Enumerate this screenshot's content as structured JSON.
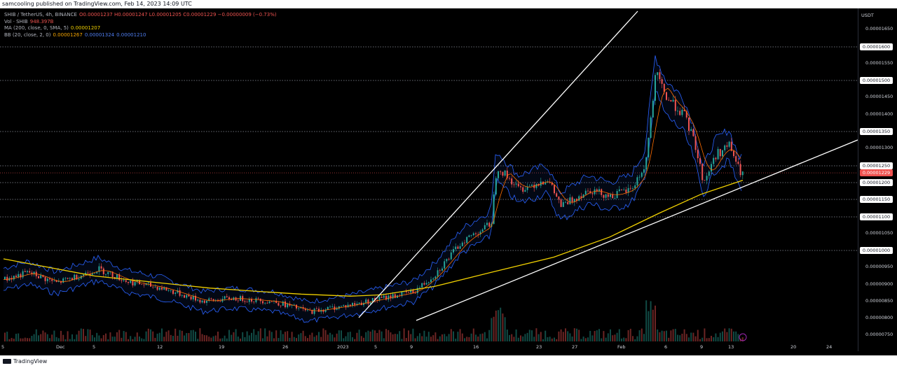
{
  "header": {
    "publish_text": "samcooling published on TradingView.com, Feb 14, 2023 14:09 UTC"
  },
  "legend": {
    "symbol": "SHIB / TetherUS, 4h, BINANCE",
    "ohlc": "O0.00001237 H0.00001247 L0.00001205 C0.00001229 −0.00000009 (−0.73%)",
    "vol_label": "Vol · SHIB",
    "vol_value": "948.397B",
    "ma_label": "MA (200, close, 0, SMA, 5)",
    "ma_value": "0.00001207",
    "bb_label": "BB (20, close, 2, 0)",
    "bb_values": [
      "0.00001267",
      "0.00001324",
      "0.00001210"
    ]
  },
  "price_axis": {
    "currency": "USDT",
    "labels": [
      "0.00001650",
      "0.00001600",
      "0.00001550",
      "0.00001500",
      "0.00001450",
      "0.00001400",
      "0.00001350",
      "0.00001300",
      "0.00001250",
      "0.00001200",
      "0.00001150",
      "0.00001100",
      "0.00001050",
      "0.00001000",
      "0.00000950",
      "0.00000900",
      "0.00000850",
      "0.00000800",
      "0.00000750"
    ],
    "highlighted": [
      "0.00001600",
      "0.00001500",
      "0.00001350",
      "0.00001250",
      "0.00001200",
      "0.00001150",
      "0.00001100",
      "0.00001000"
    ],
    "current_price": "0.00001229"
  },
  "time_axis": {
    "labels": [
      "5",
      "Dec",
      "5",
      "12",
      "19",
      "26",
      "2023",
      "5",
      "9",
      "16",
      "23",
      "27",
      "Feb",
      "6",
      "9",
      "13",
      "20",
      "24"
    ]
  },
  "footer": {
    "brand": "TradingView"
  },
  "colors": {
    "up": "#26a69a",
    "down": "#ef5350",
    "ma": "#f0d000",
    "bb_band": "#2962ff",
    "bb_basis": "#ff6d00",
    "trendline": "#ffffff"
  },
  "chart_data": {
    "type": "line",
    "title": "SHIB / TetherUS, 4h, BINANCE",
    "x": [
      "Dec",
      "Dec 5",
      "Dec 12",
      "Dec 19",
      "Dec 26",
      "2023",
      "Jan 5",
      "Jan 9",
      "Jan 16",
      "Jan 23",
      "Jan 27",
      "Feb",
      "Feb 6",
      "Feb 9",
      "Feb 13"
    ],
    "series": [
      {
        "name": "SHIB / TetherUS",
        "values": [
          9.15e-06,
          9.35e-06,
          8.95e-06,
          8.6e-06,
          8.45e-06,
          8.25e-06,
          8.5e-06,
          8.7e-06,
          1.15e-05,
          1.19e-05,
          1.195e-05,
          1.22e-05,
          1.45e-05,
          1.26e-05,
          1.229e-05
        ]
      },
      {
        "name": "MA (200, close, 0, SMA, 5)",
        "values": [
          9.75e-06,
          9.25e-06,
          9.05e-06,
          8.9e-06,
          8.8e-06,
          8.72e-06,
          8.66e-06,
          8.7e-06,
          8.95e-06,
          9.35e-06,
          9.8e-06,
          1.04e-05,
          1.11e-05,
          1.165e-05,
          1.207e-05
        ]
      }
    ],
    "ylim": [
      7.5e-06,
      1.68e-05
    ]
  }
}
